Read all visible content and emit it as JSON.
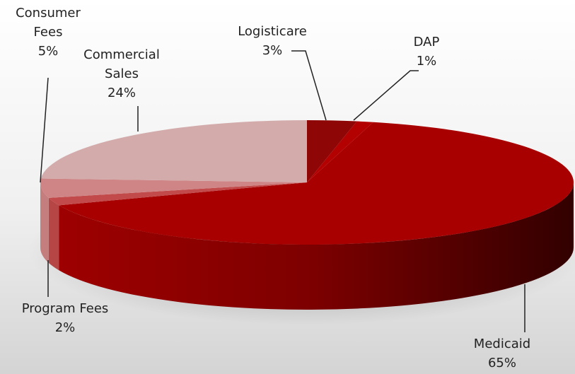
{
  "chart_data": {
    "type": "pie",
    "projection": "3d",
    "categories": [
      "Logisticare",
      "DAP",
      "Medicaid",
      "Program Fees",
      "Consumer Fees",
      "Commercial Sales"
    ],
    "values": [
      3,
      1,
      65,
      2,
      5,
      24
    ],
    "value_labels": [
      "3%",
      "1%",
      "65%",
      "2%",
      "5%",
      "24%"
    ],
    "colors": [
      "#8e0606",
      "#b30000",
      "#a80000",
      "#c24a4a",
      "#cf8585",
      "#d3abab"
    ]
  }
}
